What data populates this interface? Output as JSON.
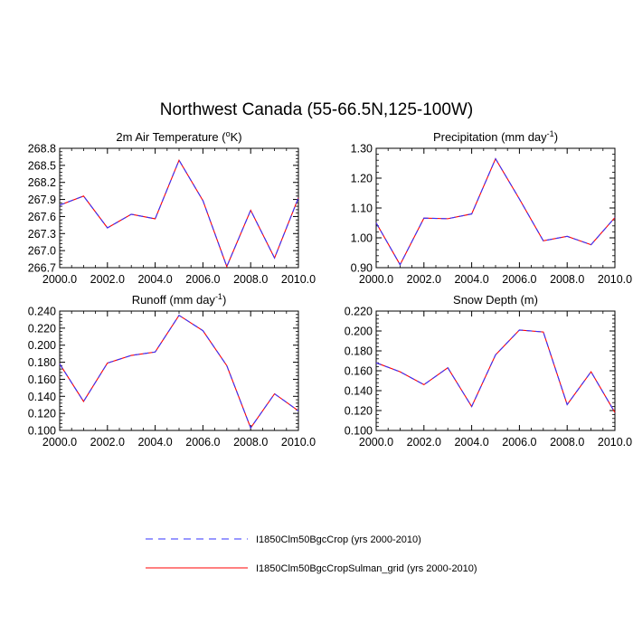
{
  "figure": {
    "title": "Northwest Canada (55-66.5N,125-100W)"
  },
  "legend": {
    "entries": [
      {
        "label": "I1850Clm50BgcCrop (yrs 2000-2010)",
        "color": "#3333ff",
        "style": "dashed"
      },
      {
        "label": "I1850Clm50BgcCropSulman_grid (yrs 2000-2010)",
        "color": "#ff0000",
        "style": "solid"
      }
    ]
  },
  "chart_data": [
    {
      "type": "line",
      "title": "2m Air Temperature (°K)",
      "title_main": "2m Air Temperature (",
      "title_sup": "o",
      "title_tail": "K)",
      "xlabel": "",
      "ylabel": "",
      "x": [
        2000,
        2001,
        2002,
        2003,
        2004,
        2005,
        2006,
        2007,
        2008,
        2009,
        2010
      ],
      "xlim": [
        2000,
        2010
      ],
      "ylim": [
        266.7,
        268.8
      ],
      "xticks": [
        "2000.0",
        "2002.0",
        "2004.0",
        "2006.0",
        "2008.0",
        "2010.0"
      ],
      "yticks": [
        "266.7",
        "267.0",
        "267.3",
        "267.6",
        "267.9",
        "268.2",
        "268.5",
        "268.8"
      ],
      "series": [
        {
          "name": "I1850Clm50BgcCrop (yrs 2000-2010)",
          "values": [
            267.8,
            267.96,
            267.4,
            267.64,
            267.56,
            268.59,
            267.88,
            266.72,
            267.71,
            266.87,
            267.93
          ]
        },
        {
          "name": "I1850Clm50BgcCropSulman_grid (yrs 2000-2010)",
          "values": [
            267.8,
            267.96,
            267.4,
            267.64,
            267.56,
            268.59,
            267.88,
            266.72,
            267.71,
            266.87,
            267.93
          ]
        }
      ]
    },
    {
      "type": "line",
      "title": "Precipitation (mm day-1)",
      "title_main": "Precipitation (mm day",
      "title_sup": "-1",
      "title_tail": ")",
      "xlabel": "",
      "ylabel": "",
      "x": [
        2000,
        2001,
        2002,
        2003,
        2004,
        2005,
        2006,
        2007,
        2008,
        2009,
        2010
      ],
      "xlim": [
        2000,
        2010
      ],
      "ylim": [
        0.9,
        1.3
      ],
      "xticks": [
        "2000.0",
        "2002.0",
        "2004.0",
        "2006.0",
        "2008.0",
        "2010.0"
      ],
      "yticks": [
        "0.90",
        "1.00",
        "1.10",
        "1.20",
        "1.30"
      ],
      "series": [
        {
          "name": "I1850Clm50BgcCrop (yrs 2000-2010)",
          "values": [
            1.05,
            0.91,
            1.066,
            1.064,
            1.08,
            1.265,
            1.13,
            0.99,
            1.005,
            0.977,
            1.068
          ]
        },
        {
          "name": "I1850Clm50BgcCropSulman_grid (yrs 2000-2010)",
          "values": [
            1.05,
            0.91,
            1.066,
            1.064,
            1.08,
            1.265,
            1.13,
            0.99,
            1.005,
            0.977,
            1.068
          ]
        }
      ]
    },
    {
      "type": "line",
      "title": "Runoff (mm day-1)",
      "title_main": "Runoff (mm day",
      "title_sup": "-1",
      "title_tail": ")",
      "xlabel": "",
      "ylabel": "",
      "x": [
        2000,
        2001,
        2002,
        2003,
        2004,
        2005,
        2006,
        2007,
        2008,
        2009,
        2010
      ],
      "xlim": [
        2000,
        2010
      ],
      "ylim": [
        0.1,
        0.24
      ],
      "xticks": [
        "2000.0",
        "2002.0",
        "2004.0",
        "2006.0",
        "2008.0",
        "2010.0"
      ],
      "yticks": [
        "0.100",
        "0.120",
        "0.140",
        "0.160",
        "0.180",
        "0.200",
        "0.220",
        "0.240"
      ],
      "series": [
        {
          "name": "I1850Clm50BgcCrop (yrs 2000-2010)",
          "values": [
            0.178,
            0.134,
            0.179,
            0.188,
            0.192,
            0.235,
            0.217,
            0.176,
            0.103,
            0.143,
            0.123
          ]
        },
        {
          "name": "I1850Clm50BgcCropSulman_grid (yrs 2000-2010)",
          "values": [
            0.178,
            0.134,
            0.179,
            0.188,
            0.192,
            0.235,
            0.217,
            0.176,
            0.103,
            0.143,
            0.123
          ]
        }
      ]
    },
    {
      "type": "line",
      "title": "Snow Depth (m)",
      "title_main": "Snow Depth (m)",
      "title_sup": "",
      "title_tail": "",
      "xlabel": "",
      "ylabel": "",
      "x": [
        2000,
        2001,
        2002,
        2003,
        2004,
        2005,
        2006,
        2007,
        2008,
        2009,
        2010
      ],
      "xlim": [
        2000,
        2010
      ],
      "ylim": [
        0.1,
        0.22
      ],
      "xticks": [
        "2000.0",
        "2002.0",
        "2004.0",
        "2006.0",
        "2008.0",
        "2010.0"
      ],
      "yticks": [
        "0.100",
        "0.120",
        "0.140",
        "0.160",
        "0.180",
        "0.200",
        "0.220"
      ],
      "series": [
        {
          "name": "I1850Clm50BgcCrop (yrs 2000-2010)",
          "values": [
            0.168,
            0.159,
            0.146,
            0.163,
            0.124,
            0.176,
            0.201,
            0.199,
            0.126,
            0.159,
            0.118
          ]
        },
        {
          "name": "I1850Clm50BgcCropSulman_grid (yrs 2000-2010)",
          "values": [
            0.168,
            0.159,
            0.146,
            0.163,
            0.124,
            0.176,
            0.201,
            0.199,
            0.126,
            0.159,
            0.118
          ]
        }
      ]
    }
  ]
}
